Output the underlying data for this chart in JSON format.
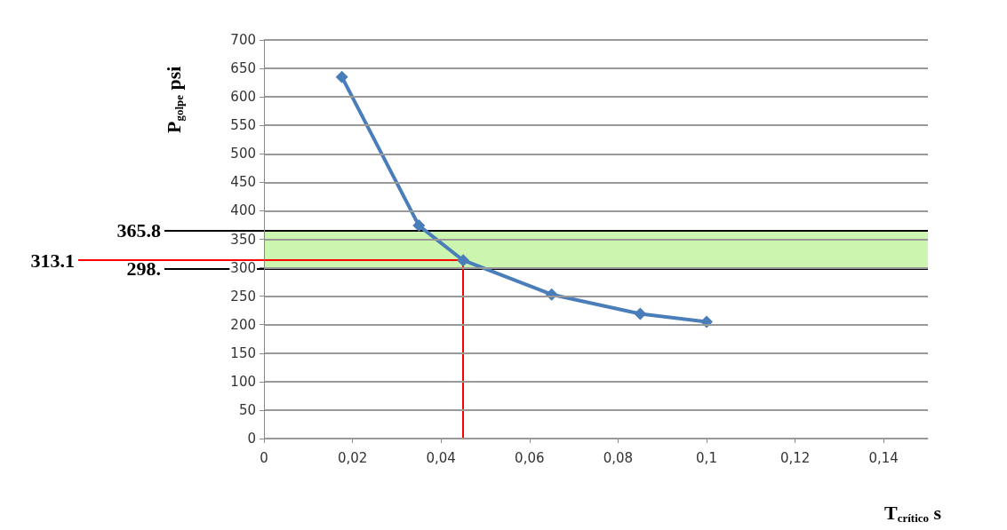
{
  "chart_data": {
    "type": "line",
    "xlabel": "T$_{crítico}$ s",
    "ylabel": "P$_{golpe}$ psi",
    "x": [
      0.0176,
      0.035,
      0.045,
      0.065,
      0.085,
      0.1
    ],
    "series": [
      {
        "color": "#4a7ebb",
        "values": [
          635,
          374,
          313,
          253,
          219,
          205
        ]
      }
    ],
    "xlim": [
      0,
      0.15
    ],
    "xticks": [
      {
        "value": 0,
        "label": "0"
      },
      {
        "value": 0.02,
        "label": "0,02"
      },
      {
        "value": 0.04,
        "label": "0,04"
      },
      {
        "value": 0.06,
        "label": "0,06"
      },
      {
        "value": 0.08,
        "label": "0,08"
      },
      {
        "value": 0.1,
        "label": "0,1"
      },
      {
        "value": 0.12,
        "label": "0,12"
      },
      {
        "value": 0.14,
        "label": "0,14"
      }
    ],
    "ylim": [
      0,
      700
    ],
    "yticks": [
      0,
      50,
      100,
      150,
      200,
      250,
      300,
      350,
      400,
      450,
      500,
      550,
      600,
      650,
      700
    ],
    "grid": "y",
    "marker": "diamond",
    "line_style": "solid",
    "bands": [
      {
        "axis": "y",
        "from": 298,
        "to": 365.8,
        "color": "#ccf5b0"
      }
    ],
    "ref_lines": [
      {
        "axis": "y",
        "value": 365.8,
        "label": "365.8",
        "color": "#000000"
      },
      {
        "axis": "y",
        "value": 313.1,
        "label": "313.1",
        "color": "#ff0000"
      },
      {
        "axis": "y",
        "value": 298,
        "label": "298.",
        "color": "#000000"
      },
      {
        "axis": "x",
        "value": 0.045,
        "color": "#ff0000"
      }
    ]
  }
}
